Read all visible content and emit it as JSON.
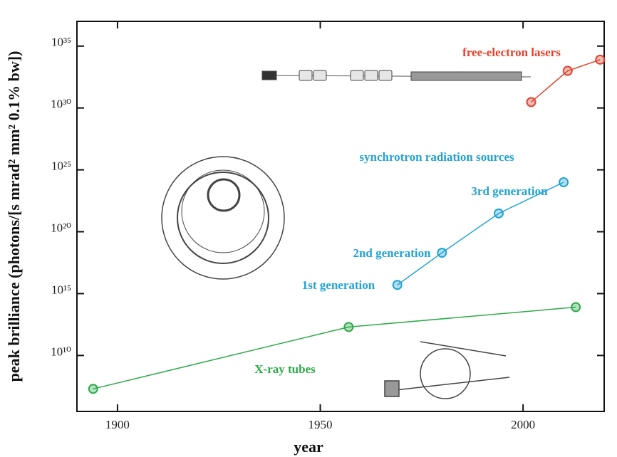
{
  "chart_data": {
    "type": "line",
    "xlabel": "year",
    "ylabel": "peak brilliance (photons/[s mrad² mm² 0.1% bw])",
    "xlim": [
      1890,
      2020
    ],
    "xticks": [
      1900,
      1950,
      2000
    ],
    "ylim": [
      300000.0,
      1e+37
    ],
    "log_y": true,
    "yticks": [
      {
        "value": 10000000000.0,
        "label": "10¹⁰"
      },
      {
        "value": 1000000000000000.0,
        "label": "10¹⁵"
      },
      {
        "value": 1e+20,
        "label": "10²⁰"
      },
      {
        "value": 1e+25,
        "label": "10²⁵"
      },
      {
        "value": 1e+30,
        "label": "10³⁰"
      },
      {
        "value": 1e+35,
        "label": "10³⁵"
      }
    ],
    "series": [
      {
        "name": "X-ray tubes",
        "color": "#2eaa4a",
        "x": [
          1894,
          1957,
          2013
        ],
        "values": [
          20000000.0,
          2000000000000.0,
          80000000000000.0
        ]
      },
      {
        "name": "synchrotron radiation sources",
        "color": "#22a3d3",
        "x": [
          1969,
          1980,
          1994,
          2010
        ],
        "values": [
          5000000000000000.0,
          2e+18,
          3e+21,
          1e+24
        ]
      },
      {
        "name": "free-electron lasers",
        "color": "#e2412b",
        "x": [
          2002,
          2011,
          2019
        ],
        "values": [
          3e+30,
          1e+33,
          8e+33
        ]
      }
    ],
    "annotations": [
      {
        "text": "1st generation",
        "color": "#22a3d3"
      },
      {
        "text": "2nd generation",
        "color": "#22a3d3"
      },
      {
        "text": "3rd generation",
        "color": "#22a3d3"
      }
    ]
  }
}
